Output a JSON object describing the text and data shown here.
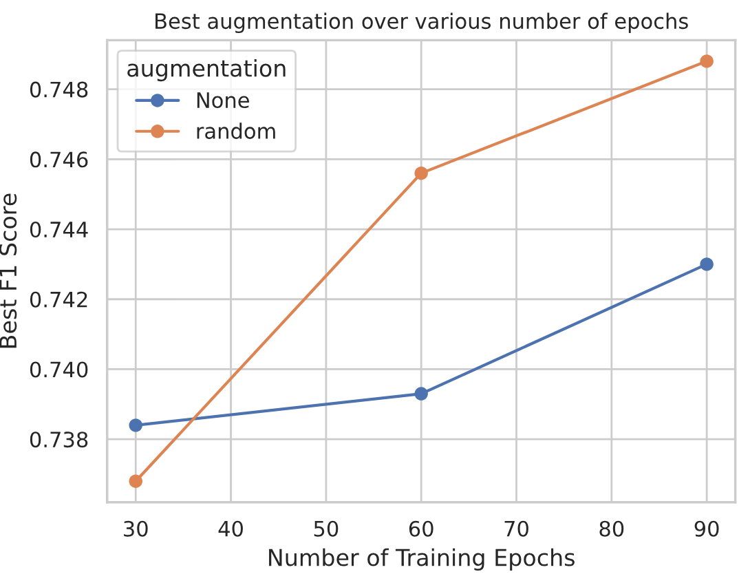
{
  "chart_data": {
    "type": "line",
    "title": "Best augmentation over various number of epochs",
    "xlabel": "Number of Training Epochs",
    "ylabel": "Best F1 Score",
    "legend_title": "augmentation",
    "x": [
      30,
      60,
      90
    ],
    "series": [
      {
        "name": "None",
        "color": "#4c72b0",
        "values": [
          0.7384,
          0.7393,
          0.743
        ]
      },
      {
        "name": "random",
        "color": "#dd8452",
        "values": [
          0.7368,
          0.7456,
          0.7488
        ]
      }
    ],
    "xlim": [
      27,
      93
    ],
    "ylim": [
      0.7362,
      0.7494
    ],
    "xticks": [
      30,
      40,
      50,
      60,
      70,
      80,
      90
    ],
    "yticks": [
      0.738,
      {
        "value": 0.74,
        "label": "0.740"
      },
      0.742,
      0.744,
      0.746,
      0.748
    ],
    "grid": true,
    "legend": "top left",
    "marker": "circle",
    "line_style": "solid"
  }
}
